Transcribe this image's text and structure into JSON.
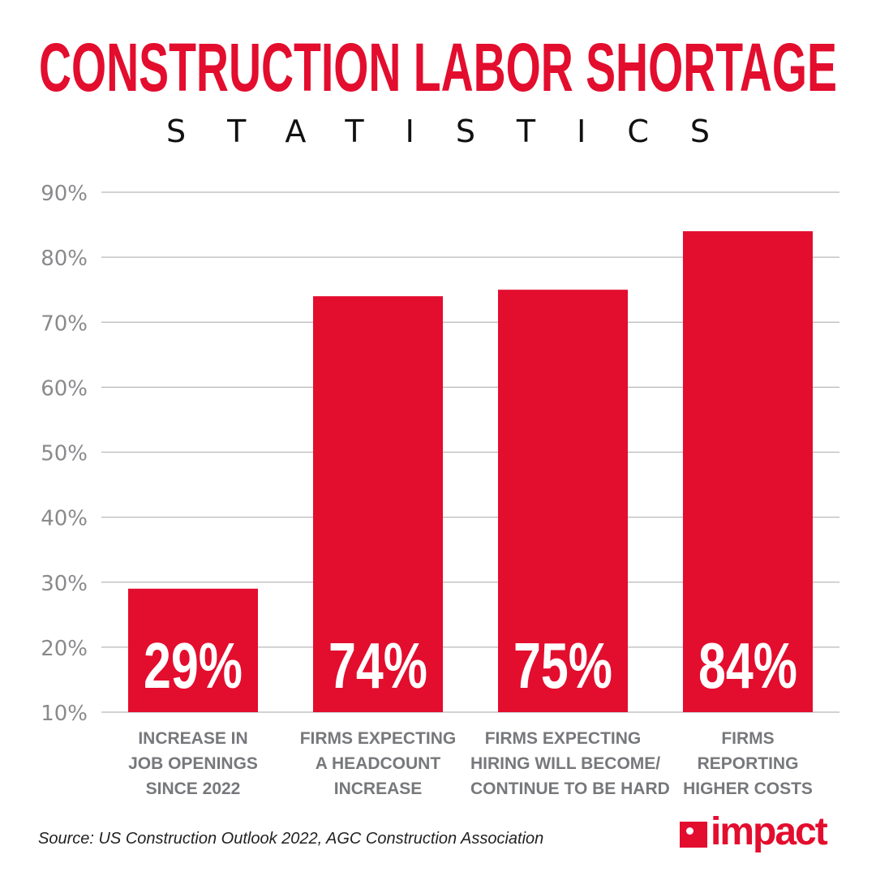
{
  "chart_data": {
    "type": "bar",
    "title": "CONSTRUCTION LABOR SHORTAGE",
    "subtitle": "STATISTICS",
    "categories": [
      [
        "INCREASE IN",
        "JOB OPENINGS",
        "SINCE 2022"
      ],
      [
        "FIRMS EXPECTING",
        "A HEADCOUNT",
        "INCREASE"
      ],
      [
        "FIRMS EXPECTING",
        "HIRING WILL BECOME/",
        "CONTINUE TO BE HARD"
      ],
      [
        "FIRMS",
        "REPORTING",
        "HIGHER COSTS"
      ]
    ],
    "values": [
      29,
      74,
      75,
      84
    ],
    "data_labels": [
      "29%",
      "74%",
      "75%",
      "84%"
    ],
    "yticks": [
      "10%",
      "20%",
      "30%",
      "40%",
      "50%",
      "60%",
      "70%",
      "80%",
      "90%"
    ],
    "ylim": [
      10,
      90
    ],
    "grid": true,
    "bar_color": "#e30d2e",
    "xlabel": "",
    "ylabel": ""
  },
  "source": "Source: US Construction Outlook 2022, AGC Construction Association",
  "logo": {
    "text": "impact",
    "color": "#e30d2e"
  }
}
